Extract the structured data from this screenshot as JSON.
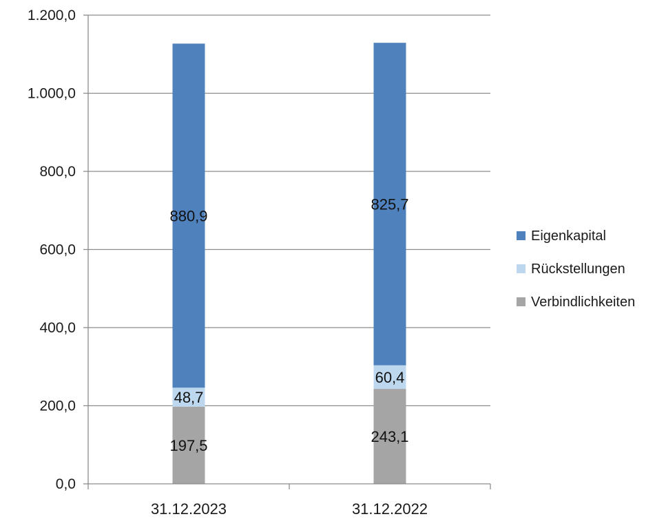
{
  "chart_data": {
    "type": "bar",
    "stacked": true,
    "categories": [
      "31.12.2023",
      "31.12.2022"
    ],
    "series": [
      {
        "name": "Verbindlichkeiten",
        "values": [
          197.5,
          243.1
        ],
        "labels": [
          "197,5",
          "243,1"
        ],
        "color": "#a5a5a5"
      },
      {
        "name": "Rückstellungen",
        "values": [
          48.7,
          60.4
        ],
        "labels": [
          "48,7",
          "60,4"
        ],
        "color": "#bdd7ee"
      },
      {
        "name": "Eigenkapital",
        "values": [
          880.9,
          825.7
        ],
        "labels": [
          "880,9",
          "825,7"
        ],
        "color": "#4f81bd"
      }
    ],
    "yticks": [
      "0,0",
      "200,0",
      "400,0",
      "600,0",
      "800,0",
      "1.000,0",
      "1.200,0"
    ],
    "ylim": [
      0,
      1200
    ],
    "title": "",
    "xlabel": "",
    "ylabel": "",
    "grid": true,
    "legend": [
      "Eigenkapital",
      "Rückstellungen",
      "Verbindlichkeiten"
    ],
    "legend_position": "right"
  }
}
